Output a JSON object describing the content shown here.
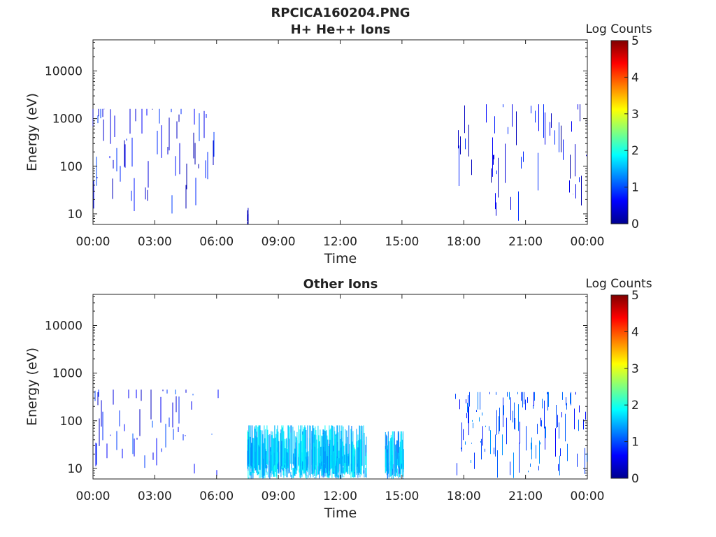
{
  "chart_data": [
    {
      "type": "heatmap",
      "title": "RPCICA160204.PNG",
      "subtitle": "H+ He++ Ions",
      "xlabel": "Time",
      "ylabel": "Energy (eV)",
      "x_ticks": [
        "00:00",
        "03:00",
        "06:00",
        "09:00",
        "12:00",
        "15:00",
        "18:00",
        "21:00",
        "00:00"
      ],
      "y_ticks": [
        "10",
        "100",
        "1000",
        "10000"
      ],
      "y_scale": "log",
      "x_range_hours": [
        0,
        24
      ],
      "y_range_eV": [
        6,
        45000
      ],
      "colorbar": {
        "label": "Log Counts",
        "ticks": [
          "0",
          "1",
          "2",
          "3",
          "4",
          "5"
        ],
        "range": [
          0,
          5
        ],
        "colormap": "jet"
      },
      "activity": [
        {
          "t_start": 0.0,
          "t_end": 6.0,
          "e_min": 10,
          "e_max": 1600,
          "level": 0.6,
          "density": 0.25,
          "note": "sparse"
        },
        {
          "t_start": 7.5,
          "t_end": 7.55,
          "e_min": 6,
          "e_max": 15,
          "level": 0.3,
          "density": 1.0
        },
        {
          "t_start": 17.6,
          "t_end": 24.0,
          "e_min": 7,
          "e_max": 2000,
          "level": 0.5,
          "density": 0.22
        }
      ]
    },
    {
      "type": "heatmap",
      "title": "Other Ions",
      "xlabel": "Time",
      "ylabel": "Energy (eV)",
      "x_ticks": [
        "00:00",
        "03:00",
        "06:00",
        "09:00",
        "12:00",
        "15:00",
        "18:00",
        "21:00",
        "00:00"
      ],
      "y_ticks": [
        "10",
        "100",
        "1000",
        "10000"
      ],
      "y_scale": "log",
      "x_range_hours": [
        0,
        24
      ],
      "y_range_eV": [
        6,
        45000
      ],
      "colorbar": {
        "label": "Log Counts",
        "ticks": [
          "0",
          "1",
          "2",
          "3",
          "4",
          "5"
        ],
        "range": [
          0,
          5
        ],
        "colormap": "jet"
      },
      "activity": [
        {
          "t_start": 0.0,
          "t_end": 6.2,
          "e_min": 6,
          "e_max": 450,
          "level": 0.7,
          "density": 0.3
        },
        {
          "t_start": 7.5,
          "t_end": 13.3,
          "e_min": 6,
          "e_max": 80,
          "level": 1.6,
          "density": 0.95,
          "note": "dense band"
        },
        {
          "t_start": 14.2,
          "t_end": 15.1,
          "e_min": 6,
          "e_max": 60,
          "level": 1.5,
          "density": 0.9
        },
        {
          "t_start": 17.6,
          "t_end": 24.0,
          "e_min": 6,
          "e_max": 400,
          "level": 1.0,
          "density": 0.55
        }
      ]
    }
  ]
}
